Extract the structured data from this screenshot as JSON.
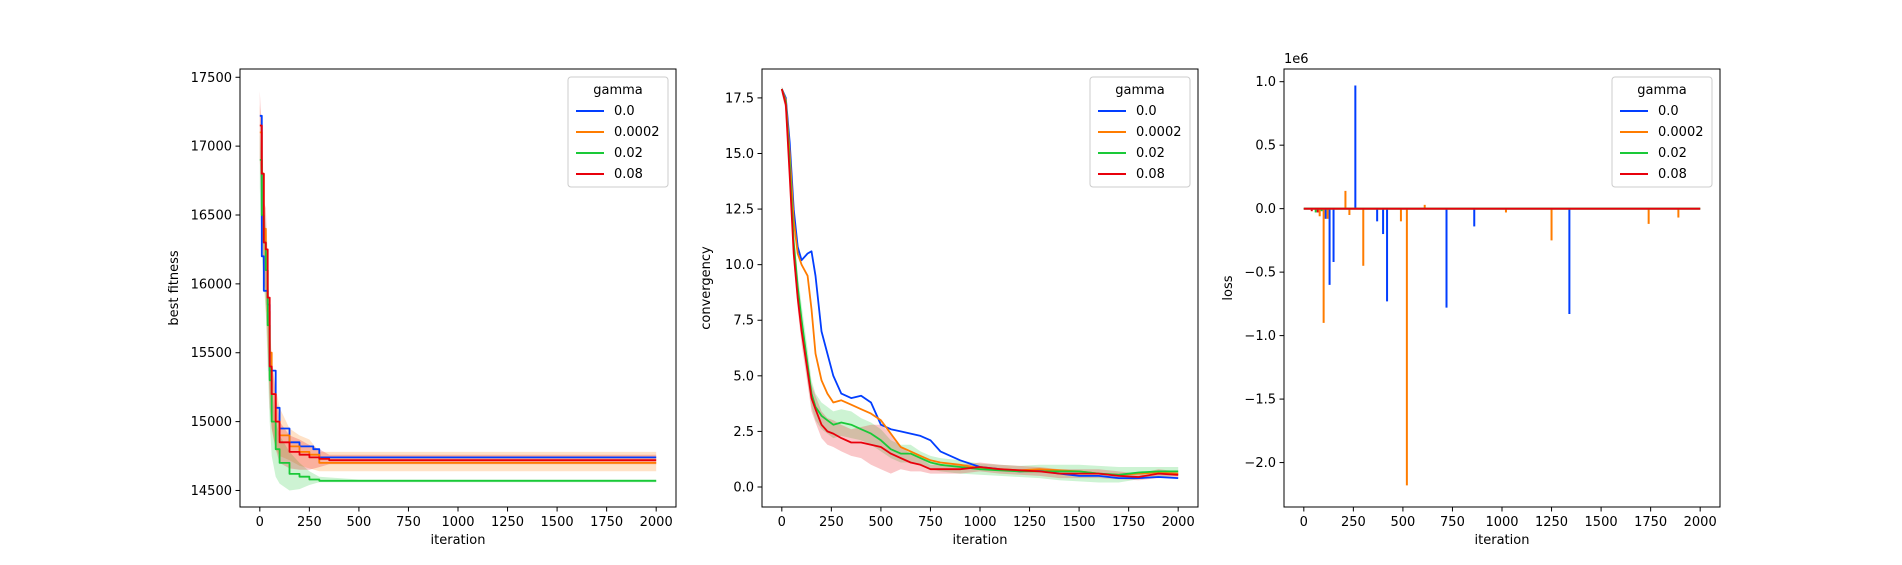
{
  "colors": {
    "0.0": "#023eff",
    "0.0002": "#ff7c00",
    "0.02": "#1ac938",
    "0.08": "#e8000b"
  },
  "chart_data": [
    {
      "type": "line",
      "title": "",
      "xlabel": "iteration",
      "ylabel": "best fitness",
      "xlim": [
        -100,
        2100
      ],
      "ylim": [
        14380,
        17560
      ],
      "xticks": [
        0,
        250,
        500,
        750,
        1000,
        1250,
        1500,
        1750,
        2000
      ],
      "yticks": [
        14500,
        15000,
        15500,
        16000,
        16500,
        17000,
        17500
      ],
      "offset_label": "",
      "legend": {
        "title": "gamma",
        "position": "top-right",
        "entries": [
          "0.0",
          "0.0002",
          "0.02",
          "0.08"
        ]
      },
      "series": [
        {
          "name": "0.0",
          "x": [
            0,
            10,
            20,
            30,
            40,
            50,
            60,
            80,
            100,
            150,
            200,
            270,
            300,
            500,
            2000
          ],
          "y": [
            17220,
            16200,
            15950,
            15950,
            15850,
            15370,
            15370,
            15100,
            14950,
            14850,
            14820,
            14800,
            14740,
            14740,
            14740
          ],
          "band_low": null,
          "band_high": null
        },
        {
          "name": "0.0002",
          "x": [
            0,
            10,
            20,
            30,
            40,
            50,
            60,
            80,
            100,
            150,
            200,
            250,
            300,
            500,
            2000
          ],
          "y": [
            17100,
            16800,
            16400,
            16100,
            15800,
            15500,
            15200,
            15000,
            14900,
            14820,
            14780,
            14760,
            14700,
            14700,
            14700
          ],
          "band_low": [
            16900,
            16500,
            16100,
            15800,
            15500,
            15200,
            14950,
            14800,
            14750,
            14720,
            14680,
            14660,
            14640,
            14640,
            14640
          ],
          "band_high": [
            17300,
            17100,
            16700,
            16400,
            16100,
            15800,
            15450,
            15250,
            15100,
            14950,
            14900,
            14870,
            14780,
            14780,
            14780
          ]
        },
        {
          "name": "0.02",
          "x": [
            0,
            10,
            20,
            30,
            40,
            50,
            60,
            80,
            100,
            150,
            200,
            250,
            300,
            500,
            2000
          ],
          "y": [
            16900,
            16500,
            16300,
            16100,
            15700,
            15300,
            15000,
            14800,
            14700,
            14620,
            14600,
            14580,
            14570,
            14570,
            14570
          ],
          "band_low": [
            16700,
            16200,
            16000,
            15800,
            15400,
            15000,
            14750,
            14600,
            14550,
            14500,
            14510,
            14540,
            14560,
            14560,
            14560
          ],
          "band_high": [
            17100,
            16800,
            16600,
            16400,
            16000,
            15600,
            15250,
            15000,
            14900,
            14780,
            14700,
            14640,
            14600,
            14580,
            14580
          ]
        },
        {
          "name": "0.08",
          "x": [
            0,
            10,
            20,
            30,
            40,
            50,
            60,
            80,
            100,
            150,
            200,
            250,
            300,
            350,
            500,
            2000
          ],
          "y": [
            17150,
            16800,
            16300,
            16250,
            15900,
            15400,
            15200,
            15000,
            14850,
            14780,
            14760,
            14740,
            14730,
            14720,
            14720,
            14720
          ],
          "band_low": [
            16900,
            16500,
            16000,
            15950,
            15600,
            15100,
            14950,
            14800,
            14700,
            14660,
            14650,
            14650,
            14670,
            14690,
            14690,
            14690
          ],
          "band_high": [
            17400,
            17100,
            16600,
            16550,
            16200,
            15700,
            15450,
            15200,
            15000,
            14900,
            14870,
            14830,
            14800,
            14760,
            14760,
            14760
          ]
        }
      ]
    },
    {
      "type": "line",
      "title": "",
      "xlabel": "iteration",
      "ylabel": "convergency",
      "xlim": [
        -100,
        2100
      ],
      "ylim": [
        -0.9,
        18.8
      ],
      "xticks": [
        0,
        250,
        500,
        750,
        1000,
        1250,
        1500,
        1750,
        2000
      ],
      "yticks": [
        0.0,
        2.5,
        5.0,
        7.5,
        10.0,
        12.5,
        15.0,
        17.5
      ],
      "ytick_labels": [
        "0.0",
        "2.5",
        "5.0",
        "7.5",
        "10.0",
        "12.5",
        "15.0",
        "17.5"
      ],
      "offset_label": "",
      "legend": {
        "title": "gamma",
        "position": "top-right",
        "entries": [
          "0.0",
          "0.0002",
          "0.02",
          "0.08"
        ]
      },
      "series": [
        {
          "name": "0.0",
          "x": [
            0,
            20,
            40,
            60,
            80,
            100,
            130,
            150,
            170,
            200,
            230,
            260,
            300,
            350,
            400,
            450,
            500,
            550,
            600,
            650,
            700,
            750,
            800,
            900,
            1000,
            1100,
            1200,
            1300,
            1400,
            1500,
            1600,
            1700,
            1800,
            1900,
            2000
          ],
          "y": [
            17.9,
            17.5,
            15.5,
            12.5,
            10.8,
            10.2,
            10.5,
            10.6,
            9.5,
            7.0,
            6.0,
            5.0,
            4.2,
            4.0,
            4.1,
            3.8,
            2.8,
            2.6,
            2.5,
            2.4,
            2.3,
            2.1,
            1.6,
            1.2,
            0.9,
            0.8,
            0.7,
            0.75,
            0.6,
            0.5,
            0.5,
            0.4,
            0.4,
            0.45,
            0.4
          ],
          "band_low": null,
          "band_high": null
        },
        {
          "name": "0.0002",
          "x": [
            0,
            20,
            40,
            60,
            80,
            100,
            130,
            150,
            170,
            200,
            230,
            260,
            300,
            350,
            400,
            450,
            500,
            550,
            600,
            650,
            700,
            750,
            800,
            900,
            1000,
            1100,
            1200,
            1300,
            1400,
            1500,
            1600,
            1700,
            1800,
            1900,
            2000
          ],
          "y": [
            17.9,
            17.4,
            15.0,
            12.0,
            10.5,
            10.0,
            9.5,
            8.0,
            6.0,
            4.8,
            4.2,
            3.8,
            3.9,
            3.7,
            3.5,
            3.3,
            3.0,
            2.4,
            1.8,
            1.6,
            1.4,
            1.2,
            1.1,
            1.0,
            0.85,
            0.8,
            0.75,
            0.8,
            0.75,
            0.7,
            0.6,
            0.55,
            0.6,
            0.65,
            0.6
          ],
          "band_low": null,
          "band_high": null
        },
        {
          "name": "0.02",
          "x": [
            0,
            20,
            40,
            60,
            80,
            100,
            130,
            150,
            170,
            200,
            230,
            260,
            300,
            350,
            400,
            450,
            500,
            550,
            600,
            650,
            700,
            750,
            800,
            900,
            1000,
            1100,
            1200,
            1300,
            1400,
            1500,
            1600,
            1700,
            1800,
            1900,
            2000
          ],
          "y": [
            17.9,
            17.3,
            14.5,
            11.0,
            9.0,
            7.5,
            5.5,
            4.2,
            3.6,
            3.2,
            3.0,
            2.8,
            2.9,
            2.8,
            2.6,
            2.4,
            2.1,
            1.7,
            1.5,
            1.5,
            1.3,
            1.1,
            1.0,
            0.9,
            0.8,
            0.75,
            0.7,
            0.7,
            0.7,
            0.7,
            0.6,
            0.55,
            0.65,
            0.7,
            0.7
          ],
          "band_low": [
            17.7,
            17.0,
            14.0,
            10.5,
            8.4,
            6.8,
            4.8,
            3.6,
            3.0,
            2.6,
            2.4,
            2.2,
            2.3,
            2.2,
            2.1,
            1.9,
            1.6,
            1.3,
            1.1,
            1.1,
            1.0,
            0.8,
            0.7,
            0.6,
            0.55,
            0.5,
            0.45,
            0.4,
            0.3,
            0.25,
            0.2,
            0.2,
            0.35,
            0.45,
            0.5
          ],
          "band_high": [
            18.0,
            17.6,
            15.0,
            11.6,
            9.6,
            8.2,
            6.2,
            4.8,
            4.2,
            3.8,
            3.6,
            3.4,
            3.5,
            3.4,
            3.1,
            2.9,
            2.6,
            2.1,
            1.9,
            1.9,
            1.6,
            1.4,
            1.3,
            1.2,
            1.05,
            1.0,
            0.95,
            1.0,
            1.0,
            1.0,
            0.95,
            0.9,
            0.9,
            0.9,
            0.9
          ]
        },
        {
          "name": "0.08",
          "x": [
            0,
            20,
            40,
            60,
            80,
            100,
            130,
            150,
            170,
            200,
            230,
            260,
            300,
            350,
            400,
            450,
            500,
            550,
            600,
            650,
            700,
            750,
            800,
            900,
            1000,
            1100,
            1200,
            1300,
            1400,
            1500,
            1600,
            1700,
            1800,
            1900,
            2000
          ],
          "y": [
            17.9,
            17.2,
            14.0,
            10.5,
            8.5,
            7.0,
            5.2,
            4.0,
            3.5,
            2.8,
            2.5,
            2.4,
            2.2,
            2.0,
            2.0,
            1.9,
            1.8,
            1.5,
            1.3,
            1.1,
            1.0,
            0.8,
            0.8,
            0.8,
            0.9,
            0.8,
            0.75,
            0.7,
            0.6,
            0.6,
            0.6,
            0.5,
            0.45,
            0.6,
            0.55
          ],
          "band_low": [
            17.7,
            16.9,
            13.5,
            10.0,
            8.0,
            6.4,
            4.6,
            3.4,
            2.9,
            2.2,
            1.9,
            1.8,
            1.6,
            1.4,
            1.3,
            1.0,
            0.8,
            0.6,
            0.8,
            0.7,
            0.7,
            0.6,
            0.6,
            0.6,
            0.7,
            0.6,
            0.55,
            0.5,
            0.4,
            0.4,
            0.4,
            0.35,
            0.3,
            0.4,
            0.4
          ],
          "band_high": [
            18.0,
            17.5,
            14.5,
            11.0,
            9.0,
            7.6,
            5.8,
            4.6,
            4.1,
            3.4,
            3.1,
            3.0,
            2.8,
            2.6,
            2.7,
            2.8,
            2.8,
            2.4,
            1.8,
            1.5,
            1.3,
            1.0,
            1.0,
            1.0,
            1.1,
            1.0,
            0.95,
            0.9,
            0.8,
            0.8,
            0.8,
            0.7,
            0.6,
            0.8,
            0.7
          ]
        }
      ]
    },
    {
      "type": "line",
      "title": "",
      "xlabel": "iteration",
      "ylabel": "loss",
      "xlim": [
        -100,
        2100
      ],
      "ylim": [
        -2.35,
        1.1
      ],
      "xticks": [
        0,
        250,
        500,
        750,
        1000,
        1250,
        1500,
        1750,
        2000
      ],
      "yticks": [
        -2.0,
        -1.5,
        -1.0,
        -0.5,
        0.0,
        0.5,
        1.0
      ],
      "ytick_labels": [
        "−2.0",
        "−1.5",
        "−1.0",
        "−0.5",
        "0.0",
        "0.5",
        "1.0"
      ],
      "offset_label": "1e6",
      "legend": {
        "title": "gamma",
        "position": "top-right",
        "entries": [
          "0.0",
          "0.0002",
          "0.02",
          "0.08"
        ]
      },
      "baseline": 0.0,
      "spikes": [
        {
          "series": "0.0",
          "x": [
            110,
            130,
            150,
            260,
            370,
            400,
            420,
            720,
            860,
            1340
          ],
          "y": [
            -0.08,
            -0.6,
            -0.42,
            0.97,
            -0.1,
            -0.2,
            -0.73,
            -0.78,
            -0.14,
            -0.83
          ]
        },
        {
          "series": "0.0002",
          "x": [
            80,
            100,
            120,
            210,
            230,
            300,
            490,
            520,
            610,
            1020,
            1250,
            1740,
            1890
          ],
          "y": [
            -0.06,
            -0.9,
            -0.08,
            0.14,
            -0.05,
            -0.45,
            -0.1,
            -2.18,
            0.03,
            -0.03,
            -0.25,
            -0.12,
            -0.07
          ]
        },
        {
          "series": "0.02",
          "x": [
            60,
            90
          ],
          "y": [
            -0.03,
            -0.02
          ]
        },
        {
          "series": "0.08",
          "x": [
            40,
            70
          ],
          "y": [
            -0.02,
            -0.03
          ]
        }
      ],
      "series": [
        {
          "name": "0.0",
          "x": [
            0,
            2000
          ],
          "y": [
            0.0,
            0.0
          ]
        },
        {
          "name": "0.0002",
          "x": [
            0,
            2000
          ],
          "y": [
            0.0,
            0.0
          ]
        },
        {
          "name": "0.02",
          "x": [
            0,
            2000
          ],
          "y": [
            0.0,
            0.0
          ]
        },
        {
          "name": "0.08",
          "x": [
            0,
            2000
          ],
          "y": [
            0.0,
            0.0
          ]
        }
      ]
    }
  ]
}
